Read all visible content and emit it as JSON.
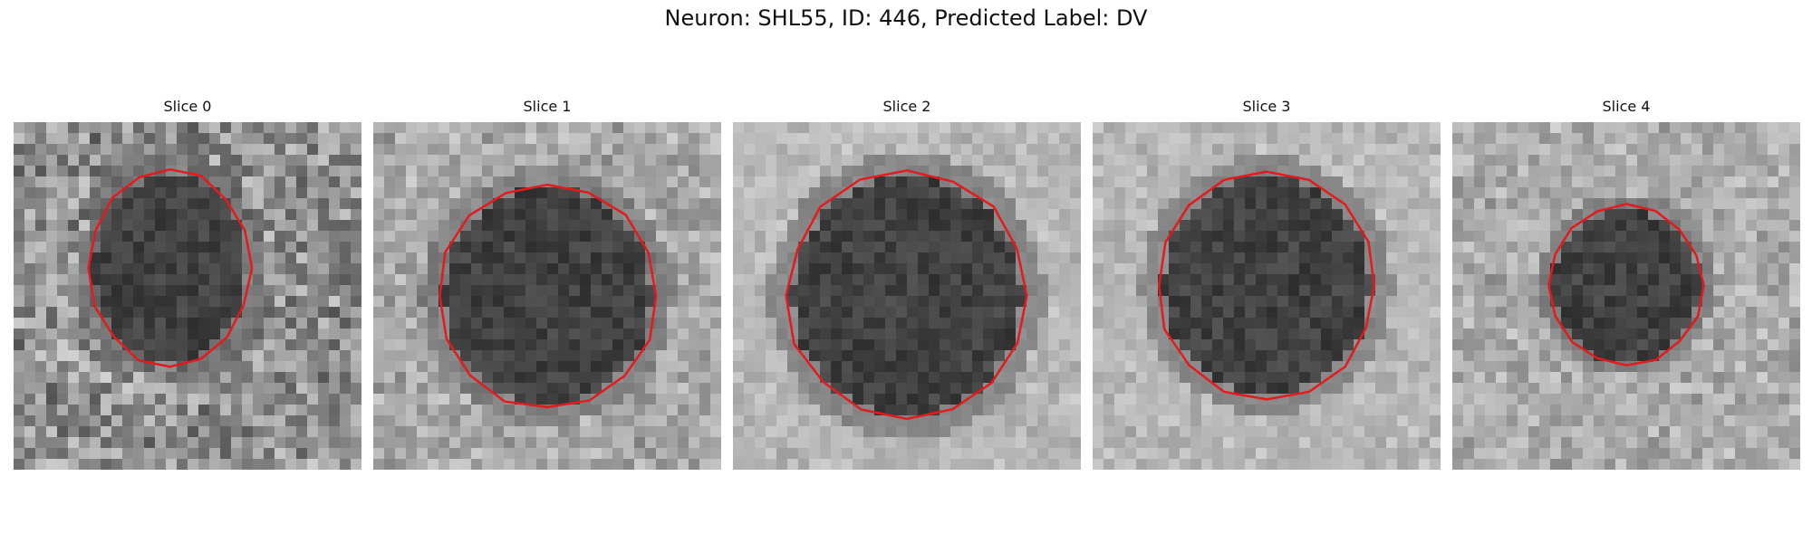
{
  "figure": {
    "title": "Neuron: SHL55, ID: 446, Predicted Label: DV",
    "outline_color": "#e41a1c",
    "panels": [
      {
        "title": "Slice 0",
        "seed": 11,
        "cell": [
          0.45,
          0.42,
          0.22,
          0.27
        ],
        "bg_dark": 0.35
      },
      {
        "title": "Slice 1",
        "seed": 23,
        "cell": [
          0.5,
          0.5,
          0.3,
          0.31
        ],
        "bg_dark": 0.2
      },
      {
        "title": "Slice 2",
        "seed": 37,
        "cell": [
          0.5,
          0.5,
          0.33,
          0.34
        ],
        "bg_dark": 0.1
      },
      {
        "title": "Slice 3",
        "seed": 41,
        "cell": [
          0.5,
          0.47,
          0.3,
          0.31
        ],
        "bg_dark": 0.1
      },
      {
        "title": "Slice 4",
        "seed": 59,
        "cell": [
          0.5,
          0.47,
          0.21,
          0.22
        ],
        "bg_dark": 0.18
      }
    ]
  }
}
